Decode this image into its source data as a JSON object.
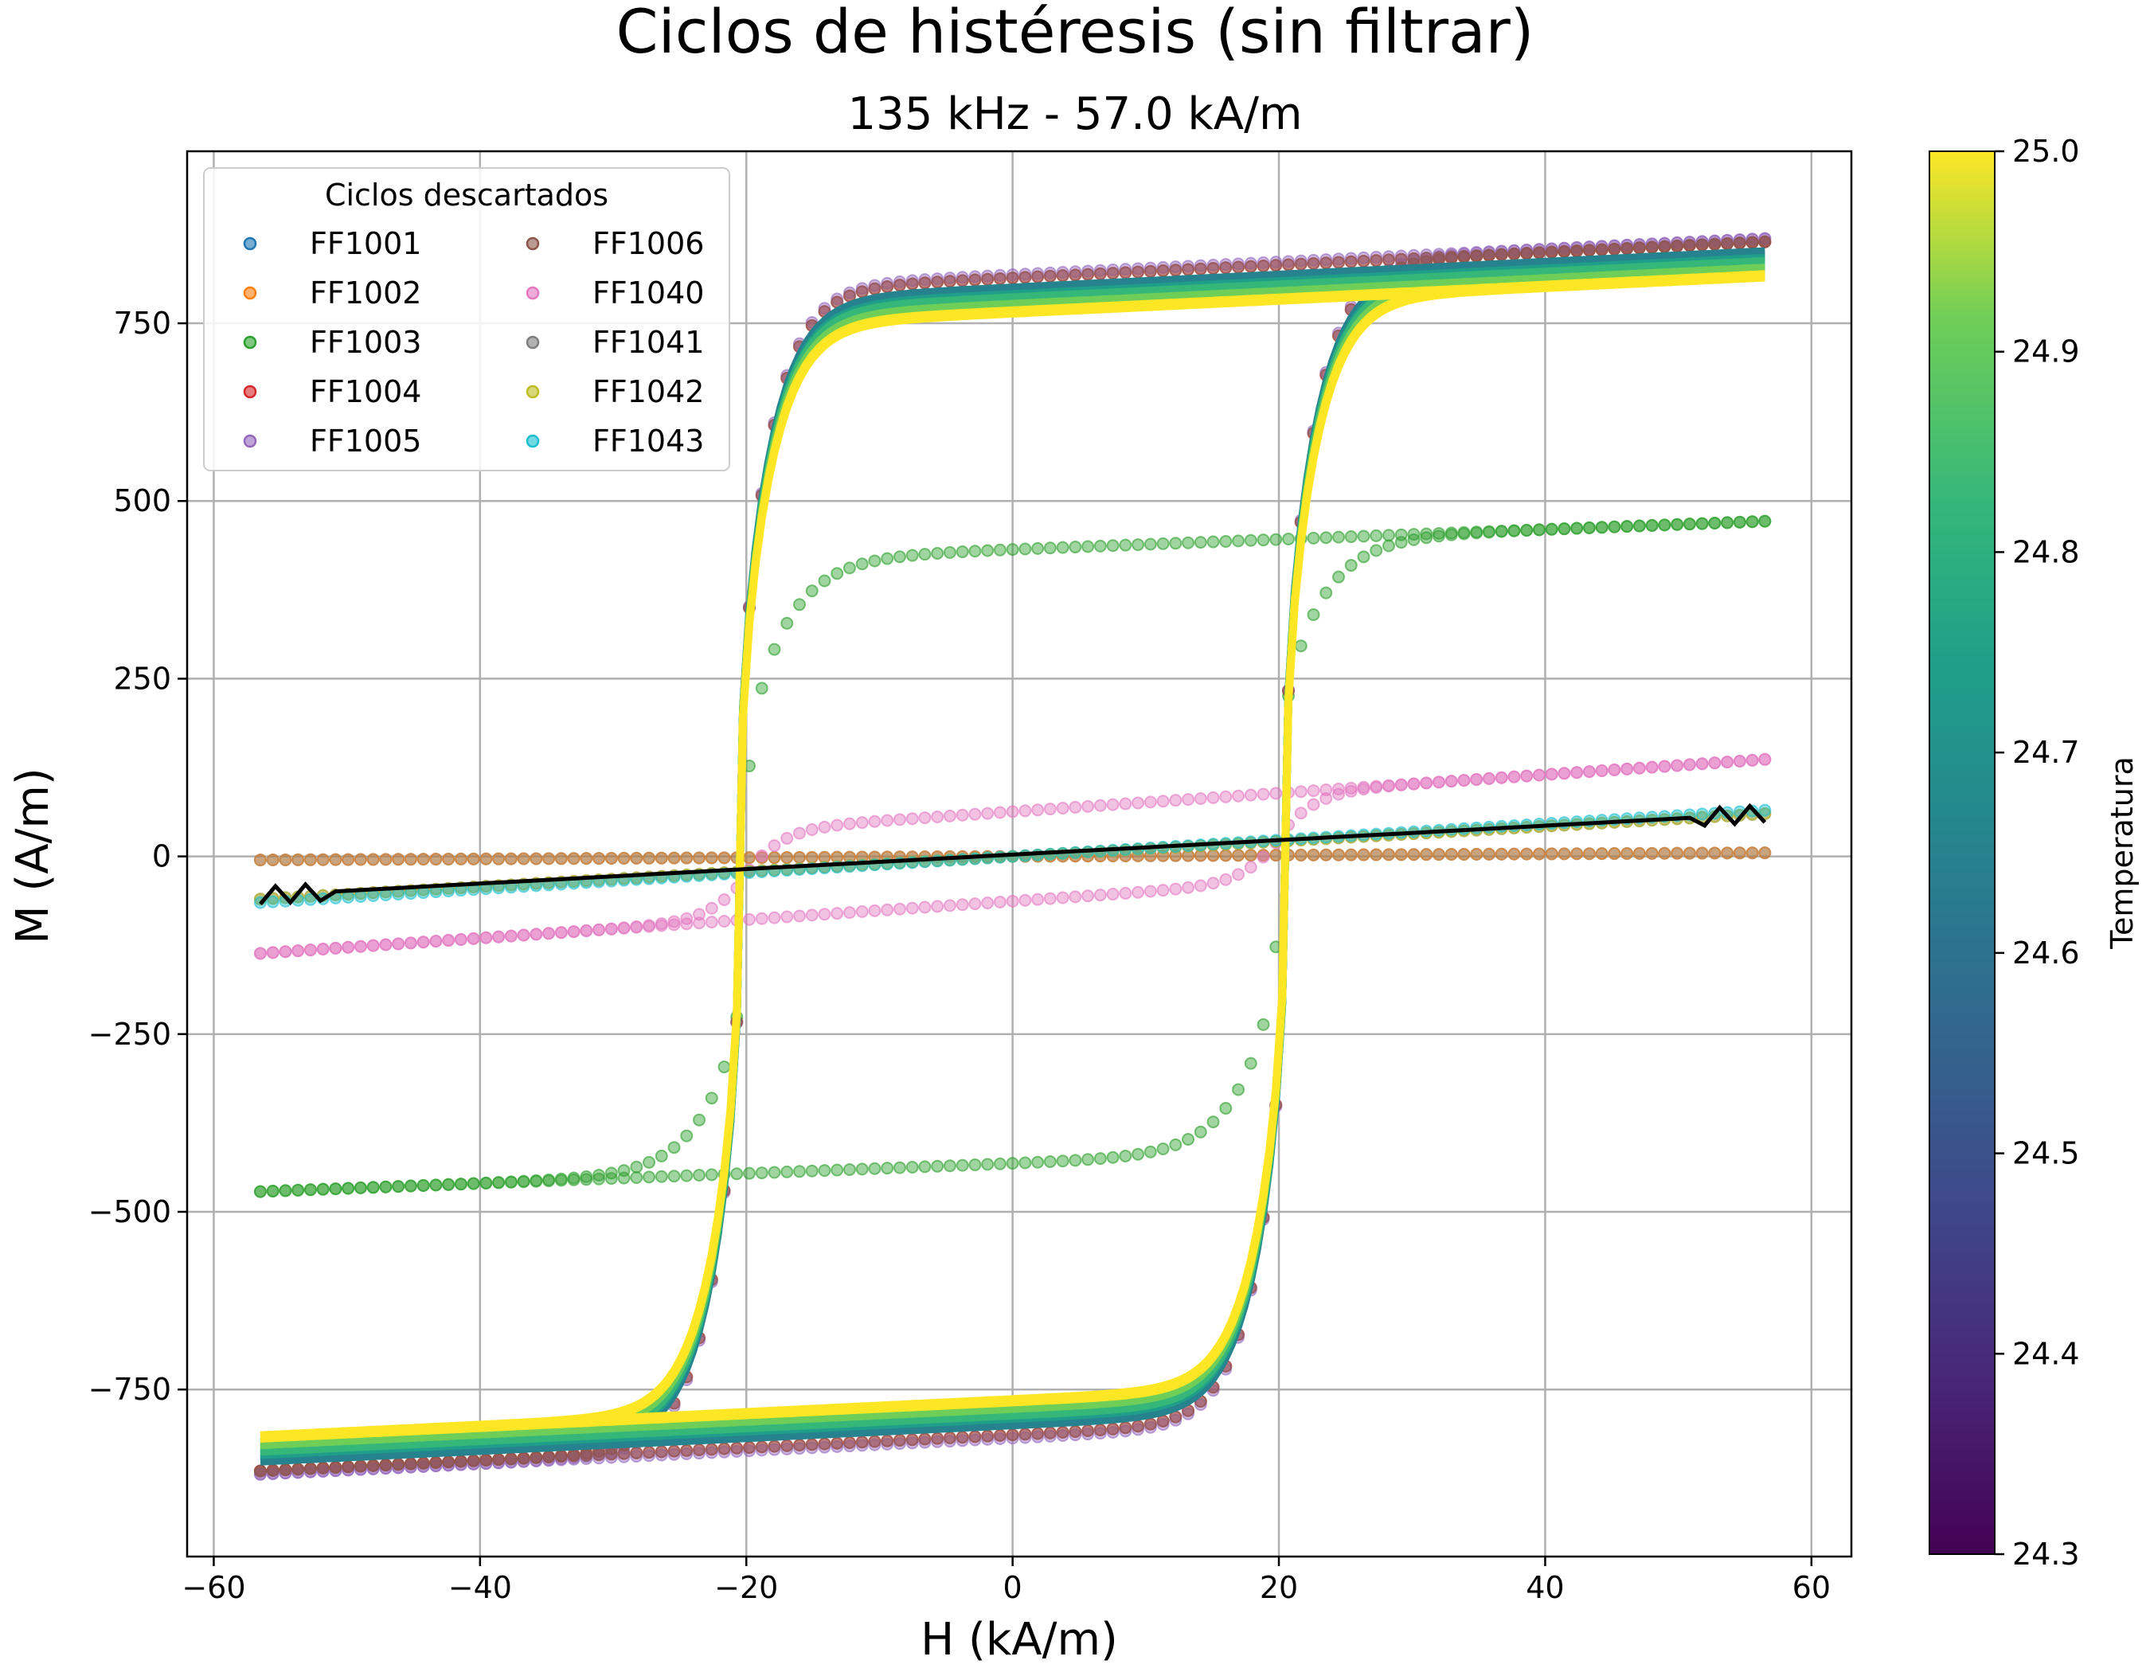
{
  "chart_data": {
    "type": "scatter",
    "title": "Ciclos de histéresis (sin filtrar)",
    "subtitle": "135 kHz - 57.0 kA/m",
    "xlabel": "H (kA/m)",
    "ylabel": "M (A/m)",
    "xlim": [
      -62,
      63
    ],
    "ylim": [
      -985,
      992
    ],
    "xticks": [
      -60,
      -40,
      -20,
      0,
      20,
      40,
      60
    ],
    "xtick_labels": [
      "−60",
      "−40",
      "−20",
      "0",
      "20",
      "40",
      "60"
    ],
    "yticks": [
      -750,
      -500,
      -250,
      0,
      250,
      500,
      750
    ],
    "ytick_labels": [
      "−750",
      "−500",
      "−250",
      "0",
      "250",
      "500",
      "750"
    ],
    "grid": true,
    "legend": {
      "title": "Ciclos descartados",
      "placement": "top-left",
      "columns": 2,
      "entries": [
        {
          "name": "FF1001",
          "color": "#1f77b4"
        },
        {
          "name": "FF1002",
          "color": "#ff7f0e"
        },
        {
          "name": "FF1003",
          "color": "#2ca02c"
        },
        {
          "name": "FF1004",
          "color": "#d62728"
        },
        {
          "name": "FF1005",
          "color": "#9467bd"
        },
        {
          "name": "FF1006",
          "color": "#8c564b"
        },
        {
          "name": "FF1040",
          "color": "#e377c2"
        },
        {
          "name": "FF1041",
          "color": "#7f7f7f"
        },
        {
          "name": "FF1042",
          "color": "#bcbd22"
        },
        {
          "name": "FF1043",
          "color": "#17becf"
        }
      ]
    },
    "colorbar": {
      "label": "Temperatura",
      "colormap": "viridis",
      "min": 24.3,
      "max": 25.0,
      "ticks": [
        24.3,
        24.4,
        24.5,
        24.6,
        24.7,
        24.8,
        24.9,
        25.0
      ],
      "tick_labels": [
        "24.3",
        "24.4",
        "24.5",
        "24.6",
        "24.7",
        "24.8",
        "24.9",
        "25.0"
      ]
    },
    "discarded_cycles": [
      {
        "name": "FF1001",
        "color": "#1f77b4",
        "shape": "linear",
        "amp": 5,
        "coercivity": 0
      },
      {
        "name": "FF1002",
        "color": "#ff7f0e",
        "shape": "linear",
        "amp": 5,
        "coercivity": 0
      },
      {
        "name": "FF1003",
        "color": "#2ca02c",
        "shape": "soft-loop",
        "amp": 480,
        "coercivity": 20
      },
      {
        "name": "FF1004",
        "color": "#d62728",
        "shape": "hysteresis",
        "amp": 875,
        "coercivity": 20.5
      },
      {
        "name": "FF1005",
        "color": "#9467bd",
        "shape": "hysteresis",
        "amp": 880,
        "coercivity": 20.5
      },
      {
        "name": "FF1006",
        "color": "#8c564b",
        "shape": "hysteresis",
        "amp": 875,
        "coercivity": 20.5
      },
      {
        "name": "FF1040",
        "color": "#e377c2",
        "shape": "narrow-loop",
        "amp": 140,
        "coercivity": 20
      },
      {
        "name": "FF1041",
        "color": "#7f7f7f",
        "shape": "linear",
        "amp": 60,
        "coercivity": 0
      },
      {
        "name": "FF1042",
        "color": "#bcbd22",
        "shape": "linear",
        "amp": 60,
        "coercivity": 0
      },
      {
        "name": "FF1043",
        "color": "#17becf",
        "shape": "linear",
        "amp": 65,
        "coercivity": 0
      }
    ],
    "accepted_cycles": {
      "description": "",
      "temperatures": [
        24.6,
        24.65,
        24.7,
        24.75,
        24.8,
        24.85,
        24.9,
        24.95,
        25.0
      ],
      "saturation": [
        870,
        865,
        860,
        855,
        850,
        845,
        840,
        835,
        830
      ],
      "coercivity": 20.5,
      "H_max": 56.5
    },
    "background_line": {
      "color": "#000000",
      "x": [
        -56.5,
        56.5
      ],
      "y": [
        -55,
        60
      ]
    }
  }
}
